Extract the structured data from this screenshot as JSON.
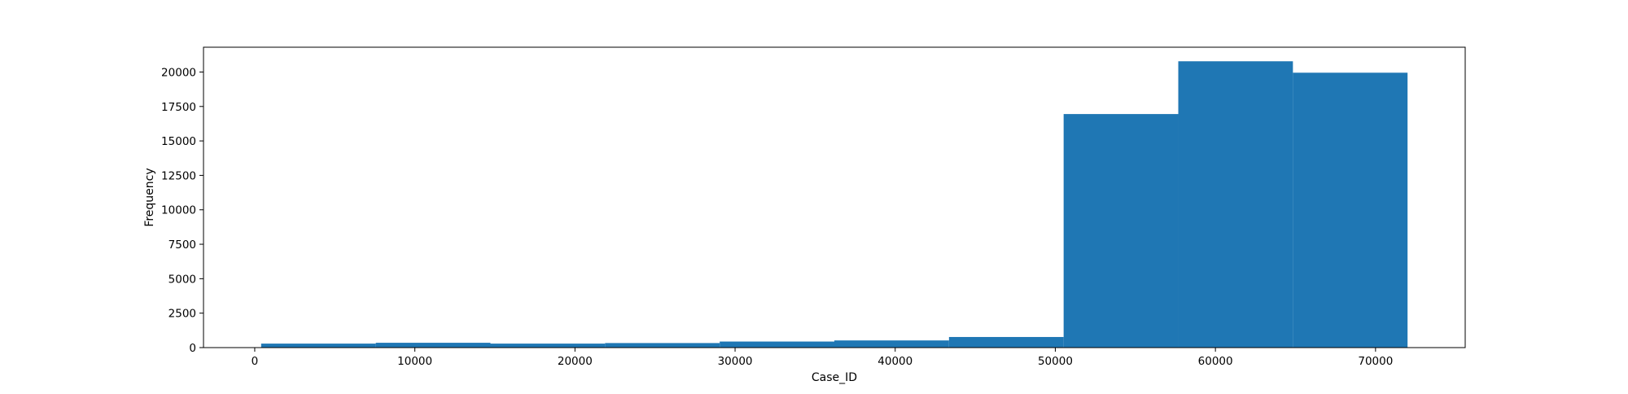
{
  "chart_data": {
    "type": "bar",
    "subtype": "histogram",
    "title": "",
    "xlabel": "Case_ID",
    "ylabel": "Frequency",
    "bin_edges": [
      400,
      7560,
      14720,
      21880,
      29040,
      36200,
      43360,
      50520,
      57680,
      64840,
      72000
    ],
    "values": [
      290,
      350,
      290,
      330,
      440,
      520,
      770,
      16950,
      20780,
      19950
    ],
    "xlim": [
      -3200,
      75600
    ],
    "ylim": [
      0,
      21800
    ],
    "xticks": [
      0,
      10000,
      20000,
      30000,
      40000,
      50000,
      60000,
      70000
    ],
    "yticks": [
      0,
      2500,
      5000,
      7500,
      10000,
      12500,
      15000,
      17500,
      20000
    ],
    "xtick_labels": [
      "0",
      "10000",
      "20000",
      "30000",
      "40000",
      "50000",
      "60000",
      "70000"
    ],
    "ytick_labels": [
      "0",
      "2500",
      "5000",
      "7500",
      "10000",
      "12500",
      "15000",
      "17500",
      "20000"
    ],
    "bar_color": "#1f77b4",
    "grid": false,
    "legend": "none"
  }
}
